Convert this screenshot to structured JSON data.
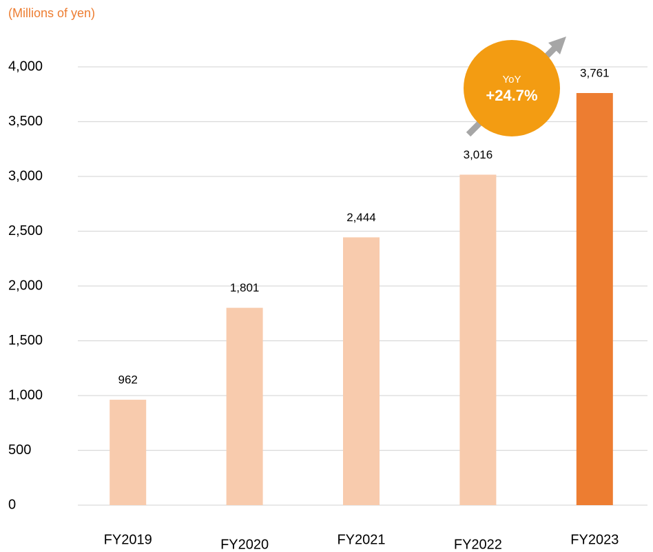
{
  "chart_data": {
    "type": "bar",
    "unit_label": "(Millions of yen)",
    "categories": [
      "FY2019",
      "FY2020",
      "FY2021",
      "FY2022",
      "FY2023"
    ],
    "values": [
      962,
      1801,
      2444,
      3016,
      3761
    ],
    "value_labels": [
      "962",
      "1,801",
      "2,444",
      "3,016",
      "3,761"
    ],
    "colors": [
      "#f8cbad",
      "#f8cbad",
      "#f8cbad",
      "#f8cbad",
      "#ed7d31"
    ],
    "ylim": [
      0,
      4000
    ],
    "yticks": [
      0,
      500,
      {
        "value": 1000,
        "label": "1,000"
      },
      {
        "value": 1500,
        "label": "1,500"
      },
      {
        "value": 2000,
        "label": "2,000"
      },
      {
        "value": 2500,
        "label": "2,500"
      },
      {
        "value": 3000,
        "label": "3,000"
      },
      {
        "value": 3500,
        "label": "3,500"
      },
      {
        "value": 4000,
        "label": "4,000"
      }
    ],
    "grid": true,
    "annotation": {
      "label": "YoY",
      "text": "+24.7%",
      "color": "#f39c12"
    }
  }
}
